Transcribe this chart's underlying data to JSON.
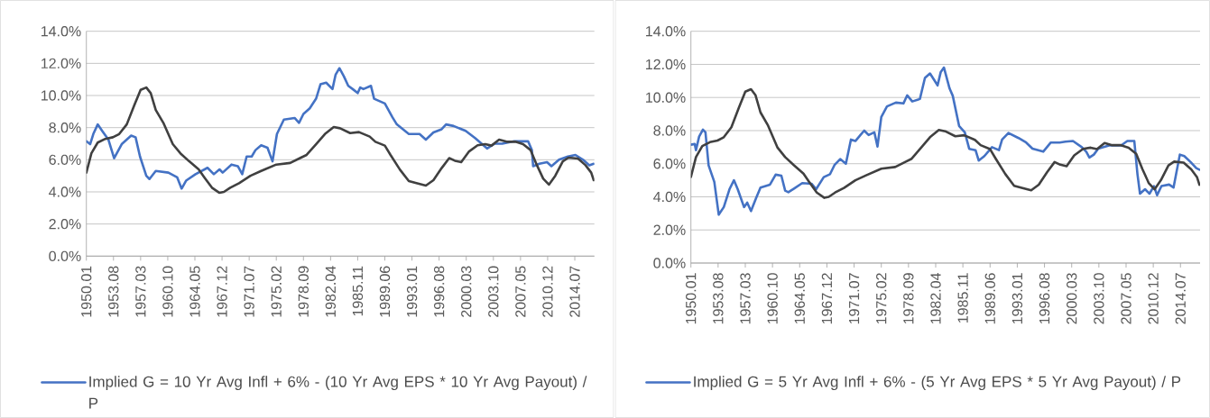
{
  "chart_data": [
    {
      "type": "line",
      "xlim": [
        "1950-01",
        "2017-02"
      ],
      "ylim": [
        0,
        14
      ],
      "grid": "y",
      "legend": "bottom",
      "xticks": [
        {
          "value": "1950-01",
          "label": "1950.01"
        },
        {
          "value": "1953-08",
          "label": "1953.08"
        },
        {
          "value": "1957-03",
          "label": "1957.03"
        },
        {
          "value": "1960-10",
          "label": "1960.10"
        },
        {
          "value": "1964-05",
          "label": "1964.05"
        },
        {
          "value": "1967-12",
          "label": "1967.12"
        },
        {
          "value": "1971-07",
          "label": "1971.07"
        },
        {
          "value": "1975-02",
          "label": "1975.02"
        },
        {
          "value": "1978-09",
          "label": "1978.09"
        },
        {
          "value": "1982-04",
          "label": "1982.04"
        },
        {
          "value": "1985-11",
          "label": "1985.11"
        },
        {
          "value": "1989-06",
          "label": "1989.06"
        },
        {
          "value": "1993-01",
          "label": "1993.01"
        },
        {
          "value": "1996-08",
          "label": "1996.08"
        },
        {
          "value": "2000-03",
          "label": "2000.03"
        },
        {
          "value": "2003-10",
          "label": "2003.10"
        },
        {
          "value": "2007-05",
          "label": "2007.05"
        },
        {
          "value": "2010-12",
          "label": "2010.12"
        },
        {
          "value": "2014-07",
          "label": "2014.07"
        }
      ],
      "yticks": [
        {
          "value": 0,
          "label": "0.0%"
        },
        {
          "value": 2,
          "label": "2.0%"
        },
        {
          "value": 4,
          "label": "4.0%"
        },
        {
          "value": 6,
          "label": "6.0%"
        },
        {
          "value": 8,
          "label": "8.0%"
        },
        {
          "value": 10,
          "label": "10.0%"
        },
        {
          "value": 12,
          "label": "12.0%"
        },
        {
          "value": 14,
          "label": "14.0%"
        }
      ],
      "series": [
        {
          "name": "Implied G = 10 Yr Avg Infl + 6% - (10 Yr Avg EPS * 10 Yr Avg Payout) / P",
          "color": "#4472c4",
          "x": [
            "1950-01",
            "1950-07",
            "1950-12",
            "1951-07",
            "1952-02",
            "1952-12",
            "1953-09",
            "1954-09",
            "1955-12",
            "1956-07",
            "1957-02",
            "1957-12",
            "1958-05",
            "1959-03",
            "1960-11",
            "1962-01",
            "1962-08",
            "1963-03",
            "1964-06",
            "1966-01",
            "1966-11",
            "1967-08",
            "1968-01",
            "1969-03",
            "1970-01",
            "1970-08",
            "1971-03",
            "1971-11",
            "1972-05",
            "1973-02",
            "1973-12",
            "1974-08",
            "1975-03",
            "1976-02",
            "1977-07",
            "1978-02",
            "1978-09",
            "1979-07",
            "1980-05",
            "1980-12",
            "1981-09",
            "1982-07",
            "1982-12",
            "1983-06",
            "1984-01",
            "1984-08",
            "1985-03",
            "1985-11",
            "1986-03",
            "1986-08",
            "1987-08",
            "1988-01",
            "1989-06",
            "1990-06",
            "1991-01",
            "1992-08",
            "1994-01",
            "1994-11",
            "1995-11",
            "1996-12",
            "1997-07",
            "1998-07",
            "2000-02",
            "2001-05",
            "2002-12",
            "2003-12",
            "2004-12",
            "2006-07",
            "2008-05",
            "2008-11",
            "2009-01",
            "2009-11",
            "2010-11",
            "2011-06",
            "2012-06",
            "2013-08",
            "2014-08",
            "2015-08",
            "2016-06",
            "2017-01"
          ],
          "values": [
            7.16,
            6.97,
            7.6,
            8.2,
            7.8,
            7.25,
            6.1,
            6.97,
            7.5,
            7.4,
            6.2,
            5.0,
            4.8,
            5.3,
            5.2,
            4.9,
            4.2,
            4.7,
            5.1,
            5.5,
            5.1,
            5.4,
            5.2,
            5.7,
            5.6,
            5.1,
            6.2,
            6.2,
            6.6,
            6.9,
            6.75,
            5.9,
            7.6,
            8.5,
            8.6,
            8.3,
            8.85,
            9.2,
            9.8,
            10.7,
            10.8,
            10.4,
            11.3,
            11.7,
            11.2,
            10.6,
            10.4,
            10.15,
            10.5,
            10.4,
            10.6,
            9.8,
            9.5,
            8.65,
            8.2,
            7.6,
            7.6,
            7.25,
            7.7,
            7.9,
            8.2,
            8.1,
            7.8,
            7.35,
            6.7,
            7.0,
            7.0,
            7.15,
            7.15,
            6.6,
            5.6,
            5.75,
            5.85,
            5.6,
            6.0,
            6.2,
            6.3,
            6.0,
            5.65,
            5.75
          ]
        },
        {
          "color": "#404040",
          "x": [
            "1950-01",
            "1950-09",
            "1951-07",
            "1952-07",
            "1953-07",
            "1954-05",
            "1955-05",
            "1956-05",
            "1957-03",
            "1957-12",
            "1958-07",
            "1959-03",
            "1960-03",
            "1961-06",
            "1962-06",
            "1963-08",
            "1964-11",
            "1965-08",
            "1966-08",
            "1967-08",
            "1968-03",
            "1969-01",
            "1970-03",
            "1971-09",
            "1973-02",
            "1975-02",
            "1976-12",
            "1978-05",
            "1979-02",
            "1980-05",
            "1981-07",
            "1982-09",
            "1983-07",
            "1984-11",
            "1986-01",
            "1987-06",
            "1988-03",
            "1989-06",
            "1990-03",
            "1991-06",
            "1992-08",
            "1993-08",
            "1994-11",
            "1995-11",
            "1996-12",
            "1997-12",
            "1998-09",
            "1999-07",
            "2000-07",
            "2001-09",
            "2002-09",
            "2003-07",
            "2004-07",
            "2005-07",
            "2006-09",
            "2007-09",
            "2008-09",
            "2009-07",
            "2010-05",
            "2011-02",
            "2011-12",
            "2012-12",
            "2013-09",
            "2014-12",
            "2015-12",
            "2016-09",
            "2017-01"
          ],
          "values": [
            5.2,
            6.4,
            7.07,
            7.3,
            7.4,
            7.6,
            8.2,
            9.4,
            10.35,
            10.5,
            10.15,
            9.1,
            8.3,
            6.97,
            6.4,
            5.9,
            5.4,
            4.9,
            4.26,
            3.94,
            4.0,
            4.26,
            4.54,
            5.0,
            5.3,
            5.7,
            5.8,
            6.13,
            6.3,
            6.97,
            7.6,
            8.04,
            7.96,
            7.66,
            7.72,
            7.44,
            7.12,
            6.88,
            6.3,
            5.38,
            4.67,
            4.54,
            4.39,
            4.73,
            5.48,
            6.1,
            5.94,
            5.85,
            6.5,
            6.9,
            6.97,
            6.88,
            7.25,
            7.12,
            7.12,
            6.97,
            6.6,
            5.66,
            4.82,
            4.45,
            5.0,
            5.9,
            6.13,
            6.07,
            5.66,
            5.2,
            4.73
          ]
        }
      ]
    },
    {
      "type": "line",
      "xlim": [
        "1950-01",
        "2017-02"
      ],
      "ylim": [
        0,
        14
      ],
      "grid": "y",
      "legend": "bottom",
      "xticks": [
        {
          "value": "1950-01",
          "label": "1950.01"
        },
        {
          "value": "1953-08",
          "label": "1953.08"
        },
        {
          "value": "1957-03",
          "label": "1957.03"
        },
        {
          "value": "1960-10",
          "label": "1960.10"
        },
        {
          "value": "1964-05",
          "label": "1964.05"
        },
        {
          "value": "1967-12",
          "label": "1967.12"
        },
        {
          "value": "1971-07",
          "label": "1971.07"
        },
        {
          "value": "1975-02",
          "label": "1975.02"
        },
        {
          "value": "1978-09",
          "label": "1978.09"
        },
        {
          "value": "1982-04",
          "label": "1982.04"
        },
        {
          "value": "1985-11",
          "label": "1985.11"
        },
        {
          "value": "1989-06",
          "label": "1989.06"
        },
        {
          "value": "1993-01",
          "label": "1993.01"
        },
        {
          "value": "1996-08",
          "label": "1996.08"
        },
        {
          "value": "2000-03",
          "label": "2000.03"
        },
        {
          "value": "2003-10",
          "label": "2003.10"
        },
        {
          "value": "2007-05",
          "label": "2007.05"
        },
        {
          "value": "2010-12",
          "label": "2010.12"
        },
        {
          "value": "2014-07",
          "label": "2014.07"
        }
      ],
      "yticks": [
        {
          "value": 0,
          "label": "0.0%"
        },
        {
          "value": 2,
          "label": "2.0%"
        },
        {
          "value": 4,
          "label": "4.0%"
        },
        {
          "value": 6,
          "label": "6.0%"
        },
        {
          "value": 8,
          "label": "8.0%"
        },
        {
          "value": 10,
          "label": "10.0%"
        },
        {
          "value": 12,
          "label": "12.0%"
        },
        {
          "value": 14,
          "label": "14.0%"
        }
      ],
      "series": [
        {
          "name": "Implied G = 5 Yr Avg Infl + 6% - (5 Yr Avg EPS * 5 Yr Avg Payout) / P",
          "color": "#4472c4",
          "x": [
            "1950-01",
            "1950-07",
            "1950-09",
            "1951-02",
            "1951-08",
            "1951-12",
            "1952-05",
            "1953-02",
            "1953-09",
            "1954-05",
            "1955-02",
            "1955-09",
            "1956-03",
            "1957-01",
            "1957-06",
            "1957-12",
            "1958-08",
            "1959-03",
            "1960-06",
            "1961-03",
            "1961-12",
            "1962-06",
            "1962-11",
            "1963-08",
            "1964-09",
            "1965-12",
            "1966-07",
            "1967-07",
            "1968-05",
            "1968-12",
            "1969-09",
            "1970-06",
            "1971-02",
            "1971-09",
            "1972-05",
            "1972-11",
            "1973-06",
            "1974-03",
            "1974-08",
            "1975-02",
            "1975-11",
            "1977-01",
            "1978-01",
            "1978-07",
            "1979-03",
            "1980-03",
            "1980-11",
            "1981-07",
            "1982-07",
            "1982-12",
            "1983-05",
            "1984-02",
            "1984-07",
            "1985-05",
            "1986-02",
            "1986-09",
            "1987-07",
            "1987-12",
            "1988-09",
            "1989-09",
            "1990-08",
            "1991-01",
            "1991-11",
            "1993-03",
            "1994-03",
            "1995-01",
            "1996-06",
            "1997-06",
            "1998-08",
            "1999-05",
            "2000-05",
            "2001-07",
            "2002-02",
            "2002-07",
            "2003-02",
            "2003-09",
            "2005-02",
            "2006-09",
            "2007-07",
            "2008-06",
            "2008-11",
            "2009-03",
            "2009-11",
            "2010-06",
            "2011-01",
            "2011-06",
            "2012-01",
            "2013-01",
            "2013-08",
            "2014-06",
            "2015-01",
            "2015-11",
            "2016-08",
            "2017-01"
          ],
          "values": [
            7.15,
            7.19,
            6.82,
            7.64,
            8.06,
            7.9,
            5.9,
            4.9,
            2.92,
            3.38,
            4.46,
            5.0,
            4.46,
            3.38,
            3.65,
            3.14,
            3.92,
            4.56,
            4.74,
            5.34,
            5.28,
            4.37,
            4.28,
            4.5,
            4.83,
            4.79,
            4.46,
            5.19,
            5.37,
            5.92,
            6.28,
            6.0,
            7.46,
            7.37,
            7.73,
            8.0,
            7.73,
            7.9,
            7.04,
            8.82,
            9.46,
            9.69,
            9.64,
            10.13,
            9.76,
            9.91,
            11.18,
            11.45,
            10.73,
            11.54,
            11.81,
            10.54,
            10.1,
            8.28,
            7.9,
            6.9,
            6.82,
            6.19,
            6.46,
            7.0,
            6.82,
            7.46,
            7.86,
            7.55,
            7.28,
            6.91,
            6.73,
            7.28,
            7.28,
            7.33,
            7.37,
            7.0,
            6.73,
            6.37,
            6.55,
            6.91,
            7.1,
            7.1,
            7.37,
            7.37,
            5.37,
            4.19,
            4.46,
            4.19,
            4.65,
            4.1,
            4.65,
            4.74,
            4.56,
            6.55,
            6.46,
            6.1,
            5.73,
            5.64
          ]
        },
        {
          "color": "#404040",
          "x": [
            "1950-01",
            "1950-09",
            "1951-07",
            "1952-07",
            "1953-07",
            "1954-05",
            "1955-05",
            "1956-05",
            "1957-03",
            "1957-12",
            "1958-07",
            "1959-03",
            "1960-03",
            "1961-06",
            "1962-06",
            "1963-08",
            "1964-11",
            "1965-08",
            "1966-08",
            "1967-08",
            "1968-03",
            "1969-01",
            "1970-03",
            "1971-09",
            "1973-02",
            "1975-02",
            "1976-12",
            "1978-05",
            "1979-02",
            "1980-05",
            "1981-07",
            "1982-09",
            "1983-07",
            "1984-11",
            "1986-01",
            "1987-06",
            "1988-03",
            "1989-06",
            "1990-03",
            "1991-06",
            "1992-08",
            "1993-08",
            "1994-11",
            "1995-11",
            "1996-12",
            "1997-12",
            "1998-09",
            "1999-07",
            "2000-07",
            "2001-09",
            "2002-09",
            "2003-07",
            "2004-07",
            "2005-07",
            "2006-09",
            "2007-09",
            "2008-09",
            "2009-07",
            "2010-05",
            "2011-02",
            "2011-12",
            "2012-12",
            "2013-09",
            "2014-12",
            "2015-12",
            "2016-09",
            "2017-01"
          ],
          "values": [
            5.2,
            6.4,
            7.07,
            7.3,
            7.4,
            7.6,
            8.2,
            9.4,
            10.35,
            10.5,
            10.15,
            9.1,
            8.3,
            6.97,
            6.4,
            5.9,
            5.4,
            4.9,
            4.26,
            3.94,
            4.0,
            4.26,
            4.54,
            5.0,
            5.3,
            5.7,
            5.8,
            6.13,
            6.3,
            6.97,
            7.6,
            8.04,
            7.96,
            7.66,
            7.72,
            7.44,
            7.12,
            6.88,
            6.3,
            5.38,
            4.67,
            4.54,
            4.39,
            4.73,
            5.48,
            6.1,
            5.94,
            5.85,
            6.5,
            6.9,
            6.97,
            6.88,
            7.25,
            7.12,
            7.12,
            6.97,
            6.6,
            5.66,
            4.82,
            4.45,
            5.0,
            5.9,
            6.13,
            6.07,
            5.66,
            5.2,
            4.73
          ]
        }
      ]
    }
  ]
}
